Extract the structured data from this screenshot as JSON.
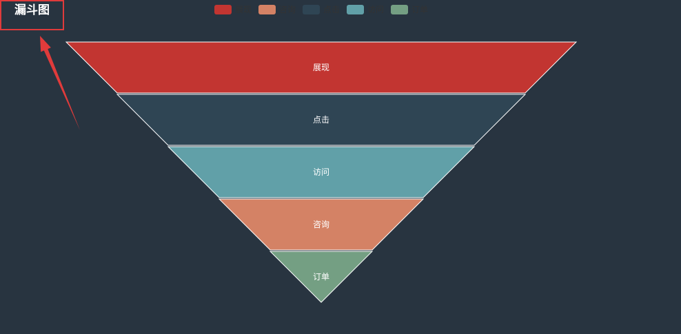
{
  "title": "漏斗图",
  "chart_data": {
    "type": "funnel",
    "sort": "descending",
    "categories": [
      "展现",
      "点击",
      "访问",
      "咨询",
      "订单"
    ],
    "values": [
      100,
      80,
      60,
      40,
      20
    ],
    "colors": [
      "#c23531",
      "#2f4554",
      "#61a0a8",
      "#d48265",
      "#749f83"
    ],
    "legend": {
      "position": "top",
      "order": [
        "展现",
        "咨询",
        "点击",
        "访问",
        "订单"
      ],
      "colors": [
        "#c23531",
        "#d48265",
        "#2f4554",
        "#61a0a8",
        "#749f83"
      ],
      "text_color": "#333333"
    },
    "background": "#283440",
    "segment_border_color": "#ffffff",
    "label_color": "#ffffff"
  },
  "annotation": {
    "color": "#e03b3b",
    "target": "title"
  }
}
